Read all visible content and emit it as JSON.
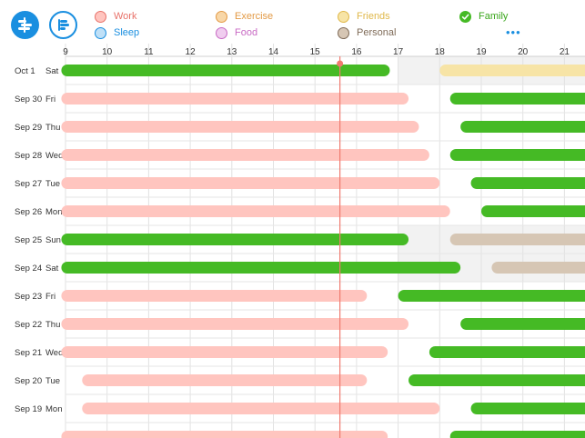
{
  "toolbar": {
    "timeline_icon": "timeline-bars-icon",
    "list_icon": "list-bars-icon"
  },
  "legend": {
    "items": [
      {
        "label": "Work",
        "color": "#ffc5bf",
        "text_color": "#e8726a",
        "checked": false
      },
      {
        "label": "Exercise",
        "color": "#f8d7a8",
        "text_color": "#e39a45",
        "checked": false
      },
      {
        "label": "Friends",
        "color": "#f7e4a6",
        "text_color": "#e0b84a",
        "checked": false
      },
      {
        "label": "Family",
        "color": "#45ba25",
        "text_color": "#3aa61c",
        "checked": true
      },
      {
        "label": "Sleep",
        "color": "#bfe0f7",
        "text_color": "#1a8fe0",
        "checked": false
      },
      {
        "label": "Food",
        "color": "#f0cdef",
        "text_color": "#c86ac4",
        "checked": false
      },
      {
        "label": "Personal",
        "color": "#d6c6b4",
        "text_color": "#7f6b58",
        "checked": false
      }
    ],
    "more_icon": "more-dots-icon",
    "more_label": "•••"
  },
  "axis": {
    "hour_ticks": [
      9,
      10,
      11,
      12,
      13,
      14,
      15,
      16,
      17,
      18,
      19,
      20,
      21
    ],
    "first_tick_label": "9"
  },
  "current_time_hour": 15.6,
  "days": [
    {
      "date": "Oct 1",
      "weekday": "Sat",
      "bars": [
        {
          "start": 8.9,
          "end": 16.8,
          "category": "Family"
        },
        {
          "start": 18.0,
          "end": 22.0,
          "category": "Friends"
        }
      ]
    },
    {
      "date": "Sep 30",
      "weekday": "Fri",
      "bars": [
        {
          "start": 8.9,
          "end": 17.25,
          "category": "Work"
        },
        {
          "start": 18.25,
          "end": 22.0,
          "category": "Family"
        }
      ]
    },
    {
      "date": "Sep 29",
      "weekday": "Thu",
      "bars": [
        {
          "start": 8.9,
          "end": 17.5,
          "category": "Work"
        },
        {
          "start": 18.5,
          "end": 22.0,
          "category": "Family"
        }
      ]
    },
    {
      "date": "Sep 28",
      "weekday": "Wed",
      "bars": [
        {
          "start": 8.9,
          "end": 17.75,
          "category": "Work"
        },
        {
          "start": 18.25,
          "end": 22.0,
          "category": "Family"
        }
      ]
    },
    {
      "date": "Sep 27",
      "weekday": "Tue",
      "bars": [
        {
          "start": 8.9,
          "end": 18.0,
          "category": "Work"
        },
        {
          "start": 18.75,
          "end": 22.0,
          "category": "Family"
        }
      ]
    },
    {
      "date": "Sep 26",
      "weekday": "Mon",
      "bars": [
        {
          "start": 8.9,
          "end": 18.25,
          "category": "Work"
        },
        {
          "start": 19.0,
          "end": 22.0,
          "category": "Family"
        }
      ]
    },
    {
      "date": "Sep 25",
      "weekday": "Sun",
      "bars": [
        {
          "start": 8.9,
          "end": 17.25,
          "category": "Family"
        },
        {
          "start": 18.25,
          "end": 22.0,
          "category": "Personal"
        }
      ]
    },
    {
      "date": "Sep 24",
      "weekday": "Sat",
      "bars": [
        {
          "start": 8.9,
          "end": 18.5,
          "category": "Family"
        },
        {
          "start": 19.25,
          "end": 22.0,
          "category": "Personal"
        }
      ]
    },
    {
      "date": "Sep 23",
      "weekday": "Fri",
      "bars": [
        {
          "start": 8.9,
          "end": 16.25,
          "category": "Work"
        },
        {
          "start": 17.0,
          "end": 22.0,
          "category": "Family"
        }
      ]
    },
    {
      "date": "Sep 22",
      "weekday": "Thu",
      "bars": [
        {
          "start": 8.9,
          "end": 17.25,
          "category": "Work"
        },
        {
          "start": 18.5,
          "end": 22.0,
          "category": "Family"
        }
      ]
    },
    {
      "date": "Sep 21",
      "weekday": "Wed",
      "bars": [
        {
          "start": 8.9,
          "end": 16.75,
          "category": "Work"
        },
        {
          "start": 17.75,
          "end": 22.0,
          "category": "Family"
        }
      ]
    },
    {
      "date": "Sep 20",
      "weekday": "Tue",
      "bars": [
        {
          "start": 9.4,
          "end": 16.25,
          "category": "Work"
        },
        {
          "start": 17.25,
          "end": 22.0,
          "category": "Family"
        }
      ]
    },
    {
      "date": "Sep 19",
      "weekday": "Mon",
      "bars": [
        {
          "start": 9.4,
          "end": 18.0,
          "category": "Work"
        },
        {
          "start": 18.75,
          "end": 22.0,
          "category": "Family"
        }
      ]
    },
    {
      "date": "",
      "weekday": "",
      "bars": [
        {
          "start": 8.9,
          "end": 16.75,
          "category": "Work"
        },
        {
          "start": 18.25,
          "end": 22.0,
          "category": "Family"
        }
      ]
    }
  ]
}
